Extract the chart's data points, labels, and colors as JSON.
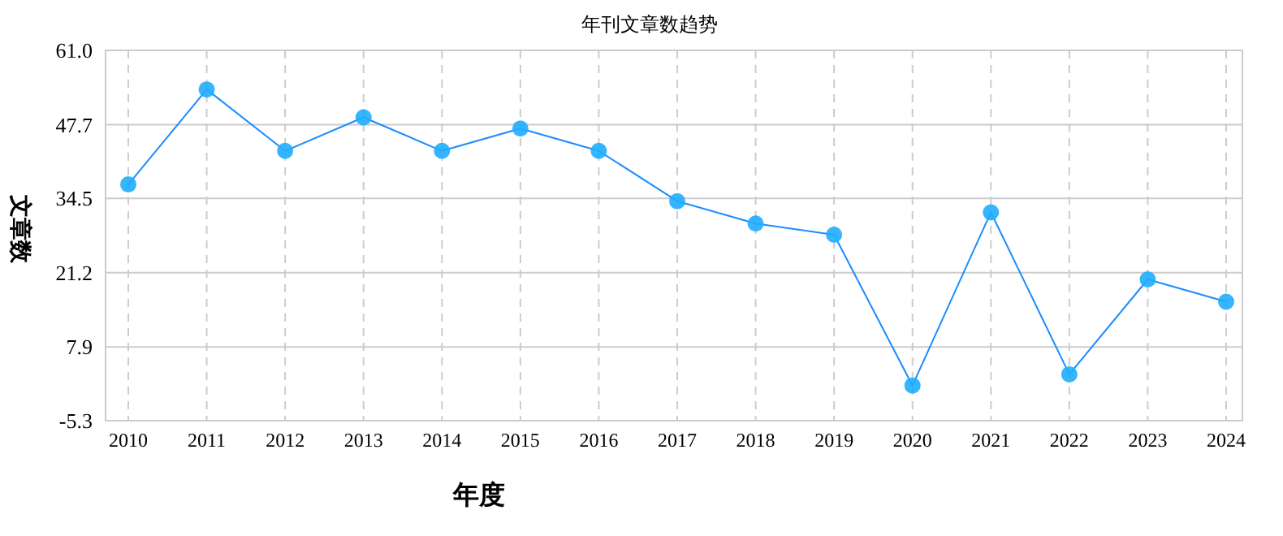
{
  "chart_data": {
    "type": "line",
    "title": "年刊文章数趋势",
    "xlabel": "年度",
    "ylabel": "文章数",
    "categories": [
      "2010",
      "2011",
      "2012",
      "2013",
      "2014",
      "2015",
      "2016",
      "2017",
      "2018",
      "2019",
      "2020",
      "2021",
      "2022",
      "2023",
      "2024"
    ],
    "series": [
      {
        "color": "#1a8cff",
        "values": [
          37,
          54,
          43,
          49,
          43,
          47,
          43,
          34,
          30,
          28,
          1,
          32,
          3,
          20,
          16
        ]
      }
    ],
    "ylim": [
      -5.3,
      61.0
    ],
    "yticks": [
      {
        "value": -5.3,
        "label": "-5.3"
      },
      {
        "value": 7.9,
        "label": "7.9"
      },
      {
        "value": 21.2,
        "label": "21.2"
      },
      {
        "value": 34.5,
        "label": "34.5"
      },
      {
        "value": 47.7,
        "label": "47.7"
      },
      {
        "value": 61.0,
        "label": "61.0"
      }
    ],
    "grid": true,
    "marker": "circle",
    "line_style": "solid"
  }
}
